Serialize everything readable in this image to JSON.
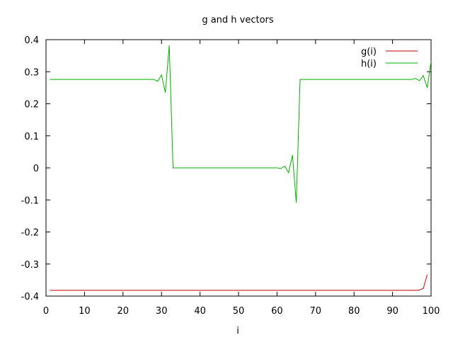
{
  "chart_data": {
    "type": "line",
    "title": "g and h vectors",
    "xlabel": "i",
    "ylabel": "",
    "xlim": [
      0,
      100
    ],
    "ylim": [
      -0.4,
      0.4
    ],
    "xticks": [
      "0",
      "10",
      "20",
      "30",
      "40",
      "50",
      "60",
      "70",
      "80",
      "90",
      "100"
    ],
    "yticks": [
      "-0.4",
      "-0.3",
      "-0.2",
      "-0.1",
      "0",
      "0.1",
      "0.2",
      "0.3",
      "0.4"
    ],
    "grid": false,
    "legend": "top-right",
    "series": [
      {
        "name": "g(i)",
        "color": "#c00000",
        "points": [
          [
            1,
            -0.382
          ],
          [
            95,
            -0.382
          ],
          [
            96,
            -0.382
          ],
          [
            97,
            -0.381
          ],
          [
            98,
            -0.376
          ],
          [
            99,
            -0.333
          ]
        ]
      },
      {
        "name": "h(i)",
        "color": "#00b000",
        "points": [
          [
            1,
            0.276
          ],
          [
            27,
            0.276
          ],
          [
            28,
            0.276
          ],
          [
            29,
            0.27
          ],
          [
            30,
            0.29
          ],
          [
            31,
            0.235
          ],
          [
            32,
            0.382
          ],
          [
            33,
            0.0
          ],
          [
            34,
            0.0
          ],
          [
            60,
            0.0
          ],
          [
            61,
            -0.002
          ],
          [
            62,
            0.005
          ],
          [
            63,
            -0.015
          ],
          [
            64,
            0.04
          ],
          [
            65,
            -0.108
          ],
          [
            66,
            0.276
          ],
          [
            67,
            0.276
          ],
          [
            94,
            0.276
          ],
          [
            95,
            0.276
          ],
          [
            96,
            0.279
          ],
          [
            97,
            0.272
          ],
          [
            98,
            0.288
          ],
          [
            99,
            0.25
          ],
          [
            100,
            0.333
          ]
        ]
      }
    ]
  }
}
